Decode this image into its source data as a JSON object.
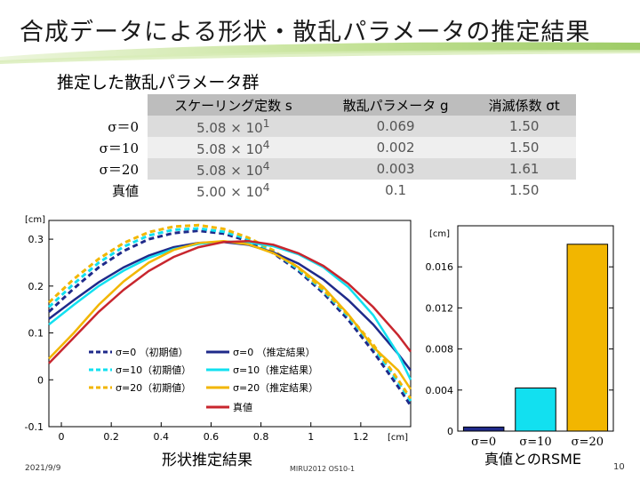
{
  "slide": {
    "title": "合成データによる形状・散乱パラメータの推定結果",
    "date": "2021/9/9",
    "conference": "MIRU2012 OS10-1",
    "page": "10"
  },
  "table": {
    "caption": "推定した散乱パラメータ群",
    "headers": [
      "スケーリング定数 s",
      "散乱パラメータ g",
      "消滅係数 σt"
    ],
    "rows": [
      {
        "label": "σ＝0",
        "s_mant": "5.08 × 10",
        "s_exp": "1",
        "g": "0.069",
        "sigma_t": "1.50"
      },
      {
        "label": "σ＝10",
        "s_mant": "5.08 × 10",
        "s_exp": "4",
        "g": "0.002",
        "sigma_t": "1.50"
      },
      {
        "label": "σ＝20",
        "s_mant": "5.08 × 10",
        "s_exp": "4",
        "g": "0.003",
        "sigma_t": "1.61"
      },
      {
        "label": "真値",
        "s_mant": "5.00 × 10",
        "s_exp": "4",
        "g": "0.1",
        "sigma_t": "1.50"
      }
    ]
  },
  "colors": {
    "navy": "#1f2a8a",
    "cyan": "#12e0f0",
    "gold": "#f2b600",
    "red": "#c8262e",
    "band": "#a9d26a"
  },
  "chart_data": [
    {
      "type": "line",
      "title": "形状推定結果",
      "xlabel": "[cm]",
      "ylabel": "[cm]",
      "xlim": [
        -0.05,
        1.4
      ],
      "ylim": [
        -0.1,
        0.34
      ],
      "xticks": [
        "0",
        "0.2",
        "0.4",
        "0.6",
        "0.8",
        "1",
        "1.2"
      ],
      "xtick_values": [
        0,
        0.2,
        0.4,
        0.6,
        0.8,
        1.0,
        1.2
      ],
      "yticks": [
        "-0.1",
        "0",
        "0.1",
        "0.2",
        "0.3"
      ],
      "ytick_values": [
        -0.1,
        0,
        0.1,
        0.2,
        0.3
      ],
      "series": [
        {
          "name": "σ=0 （初期値）",
          "style": "dashed",
          "color": "#1f2a8a",
          "x": [
            -0.05,
            0.05,
            0.15,
            0.25,
            0.35,
            0.45,
            0.55,
            0.65,
            0.75,
            0.85,
            0.95,
            1.05,
            1.15,
            1.25,
            1.35,
            1.4
          ],
          "y": [
            0.145,
            0.195,
            0.24,
            0.275,
            0.3,
            0.313,
            0.318,
            0.312,
            0.296,
            0.27,
            0.232,
            0.185,
            0.128,
            0.06,
            -0.015,
            -0.055
          ]
        },
        {
          "name": "σ=10（初期値）",
          "style": "dashed",
          "color": "#12e0f0",
          "x": [
            -0.05,
            0.05,
            0.15,
            0.25,
            0.35,
            0.45,
            0.55,
            0.65,
            0.75,
            0.85,
            0.95,
            1.05,
            1.15,
            1.25,
            1.35,
            1.4
          ],
          "y": [
            0.155,
            0.205,
            0.25,
            0.284,
            0.308,
            0.32,
            0.323,
            0.316,
            0.3,
            0.273,
            0.236,
            0.19,
            0.135,
            0.07,
            -0.005,
            -0.045
          ]
        },
        {
          "name": "σ=20（初期値）",
          "style": "dashed",
          "color": "#f2b600",
          "x": [
            -0.05,
            0.05,
            0.15,
            0.25,
            0.35,
            0.45,
            0.55,
            0.65,
            0.75,
            0.85,
            0.95,
            1.05,
            1.15,
            1.25,
            1.35,
            1.4
          ],
          "y": [
            0.165,
            0.215,
            0.258,
            0.292,
            0.315,
            0.327,
            0.33,
            0.322,
            0.303,
            0.276,
            0.239,
            0.192,
            0.138,
            0.075,
            0.0,
            -0.04
          ]
        },
        {
          "name": "σ=0 （推定結果）",
          "style": "solid",
          "color": "#1f2a8a",
          "x": [
            -0.05,
            0.05,
            0.15,
            0.25,
            0.35,
            0.45,
            0.55,
            0.65,
            0.75,
            0.85,
            0.95,
            1.05,
            1.15,
            1.25,
            1.35,
            1.4
          ],
          "y": [
            0.13,
            0.17,
            0.208,
            0.24,
            0.265,
            0.283,
            0.292,
            0.294,
            0.288,
            0.272,
            0.248,
            0.214,
            0.17,
            0.118,
            0.055,
            0.02
          ]
        },
        {
          "name": "σ=10（推定結果）",
          "style": "solid",
          "color": "#12e0f0",
          "x": [
            -0.05,
            0.05,
            0.15,
            0.25,
            0.35,
            0.45,
            0.55,
            0.65,
            0.75,
            0.85,
            0.95,
            1.05,
            1.15,
            1.25,
            1.35,
            1.4
          ],
          "y": [
            0.118,
            0.16,
            0.2,
            0.233,
            0.26,
            0.279,
            0.29,
            0.295,
            0.293,
            0.285,
            0.268,
            0.24,
            0.198,
            0.138,
            0.055,
            0.0
          ]
        },
        {
          "name": "σ=20（推定結果）",
          "style": "solid",
          "color": "#f2b600",
          "x": [
            -0.05,
            0.05,
            0.15,
            0.25,
            0.35,
            0.45,
            0.55,
            0.65,
            0.75,
            0.85,
            0.95,
            1.05,
            1.15,
            1.25,
            1.35,
            1.4
          ],
          "y": [
            0.045,
            0.1,
            0.16,
            0.21,
            0.25,
            0.277,
            0.292,
            0.296,
            0.289,
            0.27,
            0.24,
            0.198,
            0.14,
            0.07,
            0.02,
            -0.02
          ]
        },
        {
          "name": "真値",
          "style": "solid",
          "color": "#c8262e",
          "x": [
            -0.05,
            0.05,
            0.15,
            0.25,
            0.35,
            0.45,
            0.55,
            0.65,
            0.75,
            0.85,
            0.95,
            1.05,
            1.15,
            1.25,
            1.35,
            1.4
          ],
          "y": [
            0.035,
            0.09,
            0.145,
            0.192,
            0.232,
            0.262,
            0.283,
            0.294,
            0.296,
            0.288,
            0.27,
            0.243,
            0.205,
            0.155,
            0.095,
            0.06
          ]
        }
      ]
    },
    {
      "type": "bar",
      "title": "真値とのRSME",
      "ylabel": "[cm]",
      "categories": [
        "σ=0",
        "σ=10",
        "σ=20"
      ],
      "values": [
        0.0004,
        0.0042,
        0.0182
      ],
      "colors": [
        "#1f2a8a",
        "#12e0f0",
        "#f2b600"
      ],
      "ylim": [
        0,
        0.02
      ],
      "yticks": [
        "0",
        "0.004",
        "0.008",
        "0.012",
        "0.016"
      ],
      "ytick_values": [
        0,
        0.004,
        0.008,
        0.012,
        0.016
      ]
    }
  ]
}
